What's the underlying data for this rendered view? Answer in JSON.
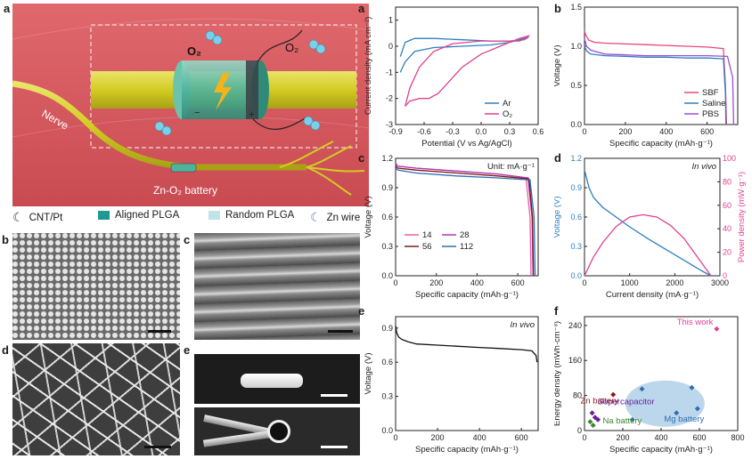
{
  "panel_letters": {
    "main_a": "a",
    "b_img": "b",
    "c_img": "c",
    "d_img": "d",
    "e_img": "e",
    "a_plot": "a",
    "b_plot": "b",
    "c_plot": "c",
    "d_plot": "d",
    "e_plot": "e",
    "f_plot": "f"
  },
  "schematic": {
    "o2_left": "O₂",
    "o2_right": "O₂",
    "nerve_label": "Nerve",
    "battery_label": "Zn-O₂ battery",
    "colors": {
      "background": "#d85a5f",
      "nerve": "#d8d02a",
      "device": "#4fb39c"
    }
  },
  "material_legend": [
    {
      "label": "CNT/Pt",
      "icon": "crescent-icon",
      "color": "#3a3a3a"
    },
    {
      "label": "Aligned PLGA",
      "icon": "square-swatch",
      "color": "#1e9a93"
    },
    {
      "label": "Random PLGA",
      "icon": "square-swatch",
      "color": "#bfe3e6"
    },
    {
      "label": "Zn wire",
      "icon": "crescent-icon",
      "color": "#6a7fb0"
    }
  ],
  "chart_data": [
    {
      "id": "a",
      "type": "line",
      "xlabel": "Potential (V vs Ag/AgCl)",
      "ylabel": "Current density (mA cm⁻²)",
      "xlim": [
        -0.9,
        0.6
      ],
      "ylim": [
        -3,
        1.5
      ],
      "xticks": [
        "-0.9",
        "-0.6",
        "-0.3",
        "0.0",
        "0.3",
        "0.6"
      ],
      "yticks": [
        "-3",
        "-2",
        "-1",
        "0",
        "1"
      ],
      "legend_position": "bottom-right",
      "series": [
        {
          "name": "Ar",
          "color": "#2e7fbf",
          "x": [
            -0.85,
            -0.8,
            -0.7,
            -0.5,
            -0.2,
            0.1,
            0.3,
            0.45,
            0.5,
            0.45,
            0.3,
            0.1,
            -0.2,
            -0.5,
            -0.7,
            -0.8,
            -0.85
          ],
          "y": [
            -1.0,
            -0.6,
            -0.2,
            -0.05,
            0.0,
            0.05,
            0.15,
            0.3,
            0.35,
            0.25,
            0.2,
            0.2,
            0.25,
            0.3,
            0.3,
            0.15,
            -0.4
          ]
        },
        {
          "name": "O₂",
          "color": "#e0408f",
          "x": [
            -0.8,
            -0.75,
            -0.65,
            -0.55,
            -0.45,
            -0.35,
            -0.2,
            0.0,
            0.2,
            0.4,
            0.5,
            0.48,
            0.4,
            0.2,
            0.0,
            -0.3,
            -0.5,
            -0.65,
            -0.75,
            -0.8
          ],
          "y": [
            -2.3,
            -2.1,
            -2.0,
            -2.0,
            -1.8,
            -1.4,
            -0.8,
            -0.3,
            0.0,
            0.3,
            0.4,
            0.3,
            0.2,
            0.2,
            0.2,
            0.1,
            -0.2,
            -0.8,
            -1.6,
            -2.3
          ]
        }
      ]
    },
    {
      "id": "b",
      "type": "line",
      "xlabel": "Specific capacity (mAh·g⁻¹)",
      "ylabel": "Voltage (V)",
      "xlim": [
        0,
        750
      ],
      "ylim": [
        0.0,
        1.5
      ],
      "xticks": [
        "0",
        "200",
        "400",
        "600"
      ],
      "yticks": [
        "0.0",
        "0.5",
        "1.0",
        "1.5"
      ],
      "legend_position": "bottom-right",
      "series": [
        {
          "name": "SBF",
          "color": "#e8467c",
          "x": [
            0,
            5,
            20,
            50,
            100,
            200,
            300,
            400,
            500,
            600,
            680,
            690,
            695
          ],
          "y": [
            1.2,
            1.15,
            1.08,
            1.05,
            1.04,
            1.03,
            1.02,
            1.01,
            1.0,
            0.99,
            0.97,
            0.5,
            0.0
          ]
        },
        {
          "name": "Saline",
          "color": "#2e7fbf",
          "x": [
            0,
            10,
            30,
            100,
            200,
            300,
            400,
            500,
            600,
            680,
            690,
            692
          ],
          "y": [
            1.0,
            0.94,
            0.9,
            0.88,
            0.87,
            0.86,
            0.86,
            0.85,
            0.85,
            0.84,
            0.4,
            0.0
          ]
        },
        {
          "name": "PBS",
          "color": "#9b4fd6",
          "x": [
            0,
            10,
            30,
            100,
            200,
            300,
            400,
            500,
            600,
            700,
            725,
            730
          ],
          "y": [
            1.1,
            1.0,
            0.95,
            0.9,
            0.89,
            0.88,
            0.88,
            0.88,
            0.88,
            0.87,
            0.6,
            0.0
          ]
        }
      ]
    },
    {
      "id": "c",
      "type": "line",
      "xlabel": "Specific capacity (mAh·g⁻¹)",
      "ylabel": "Voltage (V)",
      "xlim": [
        0,
        700
      ],
      "ylim": [
        0.0,
        1.2
      ],
      "xticks": [
        "0",
        "200",
        "400",
        "600"
      ],
      "yticks": [
        "0.0",
        "0.3",
        "0.6",
        "0.9",
        "1.2"
      ],
      "annotation": "Unit: mA·g⁻¹",
      "legend_position": "bottom-left",
      "series": [
        {
          "name": "14",
          "color": "#e85fa8",
          "x": [
            0,
            10,
            100,
            300,
            500,
            640,
            660,
            665
          ],
          "y": [
            1.15,
            1.12,
            1.1,
            1.07,
            1.04,
            1.0,
            0.6,
            0.0
          ]
        },
        {
          "name": "28",
          "color": "#b03ab0",
          "x": [
            0,
            10,
            100,
            300,
            500,
            650,
            670,
            675
          ],
          "y": [
            1.15,
            1.12,
            1.1,
            1.07,
            1.04,
            1.0,
            0.6,
            0.0
          ]
        },
        {
          "name": "56",
          "color": "#7a1a1a",
          "x": [
            0,
            10,
            100,
            300,
            500,
            655,
            672,
            677
          ],
          "y": [
            1.12,
            1.1,
            1.08,
            1.05,
            1.02,
            0.99,
            0.6,
            0.0
          ]
        },
        {
          "name": "112",
          "color": "#2e6fb0",
          "x": [
            0,
            10,
            100,
            300,
            500,
            660,
            680,
            685
          ],
          "y": [
            1.1,
            1.08,
            1.05,
            1.02,
            1.0,
            0.98,
            0.6,
            0.0
          ]
        }
      ]
    },
    {
      "id": "d",
      "type": "line",
      "title": "In vivo",
      "xlabel": "Current density (mA·g⁻¹)",
      "ylabel": "Voltage (V)",
      "ylabel_right": "Power density (mW·g⁻¹)",
      "xlim": [
        0,
        3000
      ],
      "ylim": [
        0.0,
        1.2
      ],
      "ylim_right": [
        0,
        100
      ],
      "xticks": [
        "0",
        "1000",
        "2000",
        "3000"
      ],
      "yticks": [
        "0.0",
        "0.3",
        "0.6",
        "0.9",
        "1.2"
      ],
      "yticks_right": [
        "0",
        "20",
        "40",
        "60",
        "80",
        "100"
      ],
      "series": [
        {
          "name": "Voltage",
          "axis": "left",
          "color": "#2e7fbf",
          "x": [
            0,
            100,
            200,
            400,
            700,
            1000,
            1400,
            1800,
            2200,
            2600,
            2800
          ],
          "y": [
            1.08,
            0.9,
            0.8,
            0.7,
            0.6,
            0.5,
            0.38,
            0.27,
            0.16,
            0.05,
            0.0
          ]
        },
        {
          "name": "Power density",
          "axis": "right",
          "color": "#e0408f",
          "x": [
            0,
            200,
            400,
            700,
            1000,
            1300,
            1600,
            1900,
            2200,
            2500,
            2800
          ],
          "y": [
            0,
            16,
            28,
            42,
            50,
            52,
            50,
            43,
            32,
            16,
            0
          ]
        }
      ]
    },
    {
      "id": "e",
      "type": "line",
      "title": "In vivo",
      "xlabel": "Specific capacity (mAh·g⁻¹)",
      "ylabel": "Voltage (V)",
      "xlim": [
        0,
        680
      ],
      "ylim": [
        0.0,
        1.0
      ],
      "xticks": [
        "0",
        "200",
        "400",
        "600"
      ],
      "yticks": [
        "0.0",
        "0.3",
        "0.6",
        "0.9"
      ],
      "series": [
        {
          "name": "",
          "color": "#111111",
          "x": [
            0,
            5,
            15,
            30,
            60,
            100,
            200,
            300,
            400,
            500,
            600,
            650,
            670,
            675
          ],
          "y": [
            0.92,
            0.86,
            0.82,
            0.8,
            0.78,
            0.76,
            0.75,
            0.74,
            0.73,
            0.72,
            0.71,
            0.7,
            0.66,
            0.6
          ]
        }
      ]
    },
    {
      "id": "f",
      "type": "scatter",
      "xlabel": "Specific capacity (mAh·g⁻¹)",
      "ylabel": "Energy density (mWh·cm⁻³)",
      "xlim": [
        0,
        800
      ],
      "ylim": [
        0,
        260
      ],
      "xticks": [
        "0",
        "200",
        "400",
        "600",
        "800"
      ],
      "yticks": [
        "0",
        "80",
        "160",
        "240"
      ],
      "groups": [
        {
          "name": "This work",
          "color": "#e0408f",
          "points": [
            [
              690,
              232
            ]
          ]
        },
        {
          "name": "Zn battery",
          "color": "#8b1a1a",
          "points": [
            [
              150,
              82
            ]
          ]
        },
        {
          "name": "Mg battery",
          "color": "#2e6fb0",
          "points": [
            [
              300,
              95
            ],
            [
              560,
              98
            ],
            [
              590,
              50
            ],
            [
              480,
              40
            ],
            [
              250,
              25
            ]
          ],
          "region": "ellipse"
        },
        {
          "name": "Supercapacitor",
          "color": "#6a1f9a",
          "points": [
            [
              40,
              40
            ],
            [
              55,
              30
            ],
            [
              70,
              25
            ]
          ]
        },
        {
          "name": "Na battery",
          "color": "#3a8a2a",
          "points": [
            [
              30,
              20
            ],
            [
              45,
              12
            ]
          ]
        }
      ]
    }
  ]
}
